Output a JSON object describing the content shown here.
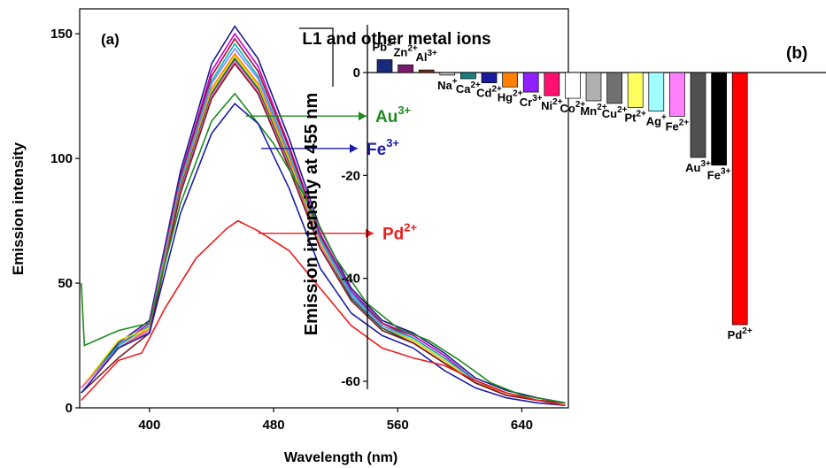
{
  "chart_data": [
    {
      "panel_label": "(a)",
      "type": "line",
      "xlabel": "Wavelength (nm)",
      "ylabel": "Emission intensity",
      "xlim": [
        355,
        670
      ],
      "ylim": [
        0,
        160
      ],
      "xticks": [
        400,
        480,
        560,
        640
      ],
      "yticks": [
        0,
        50,
        100,
        150
      ],
      "grid": false,
      "series": [
        {
          "color": "#1a1a8c",
          "values": [
            [
              356,
              8
            ],
            [
              380,
              26
            ],
            [
              400,
              35
            ],
            [
              420,
              95
            ],
            [
              440,
              138
            ],
            [
              455,
              153
            ],
            [
              470,
              140
            ],
            [
              490,
              108
            ],
            [
              510,
              72
            ],
            [
              530,
              48
            ],
            [
              550,
              35
            ],
            [
              570,
              30
            ],
            [
              590,
              22
            ],
            [
              610,
              12
            ],
            [
              630,
              7
            ],
            [
              650,
              4
            ],
            [
              668,
              2
            ]
          ]
        },
        {
          "color": "#cc00cc",
          "values": [
            [
              356,
              8
            ],
            [
              380,
              25
            ],
            [
              400,
              34
            ],
            [
              420,
              93
            ],
            [
              440,
              135
            ],
            [
              455,
              150
            ],
            [
              470,
              137
            ],
            [
              490,
              105
            ],
            [
              510,
              70
            ],
            [
              530,
              47
            ],
            [
              550,
              34
            ],
            [
              570,
              29
            ],
            [
              590,
              21
            ],
            [
              610,
              11
            ],
            [
              630,
              6
            ],
            [
              650,
              3
            ],
            [
              668,
              2
            ]
          ]
        },
        {
          "color": "#a01030",
          "values": [
            [
              356,
              8
            ],
            [
              380,
              25
            ],
            [
              400,
              33
            ],
            [
              420,
              92
            ],
            [
              440,
              133
            ],
            [
              455,
              148
            ],
            [
              470,
              135
            ],
            [
              490,
              104
            ],
            [
              510,
              69
            ],
            [
              530,
              46
            ],
            [
              550,
              34
            ],
            [
              570,
              28
            ],
            [
              590,
              20
            ],
            [
              610,
              11
            ],
            [
              630,
              6
            ],
            [
              650,
              3
            ],
            [
              668,
              2
            ]
          ]
        },
        {
          "color": "#00b8b8",
          "values": [
            [
              356,
              8
            ],
            [
              380,
              25
            ],
            [
              400,
              33
            ],
            [
              420,
              91
            ],
            [
              440,
              131
            ],
            [
              455,
              146
            ],
            [
              470,
              133
            ],
            [
              490,
              102
            ],
            [
              510,
              68
            ],
            [
              530,
              46
            ],
            [
              550,
              33
            ],
            [
              570,
              28
            ],
            [
              590,
              20
            ],
            [
              610,
              11
            ],
            [
              630,
              6
            ],
            [
              650,
              3
            ],
            [
              668,
              2
            ]
          ]
        },
        {
          "color": "#8080ff",
          "values": [
            [
              356,
              8
            ],
            [
              380,
              24
            ],
            [
              400,
              32
            ],
            [
              420,
              90
            ],
            [
              440,
              130
            ],
            [
              455,
              144
            ],
            [
              470,
              132
            ],
            [
              490,
              101
            ],
            [
              510,
              67
            ],
            [
              530,
              45
            ],
            [
              550,
              33
            ],
            [
              570,
              27
            ],
            [
              590,
              19
            ],
            [
              610,
              10
            ],
            [
              630,
              6
            ],
            [
              650,
              3
            ],
            [
              668,
              2
            ]
          ]
        },
        {
          "color": "#ff8000",
          "values": [
            [
              356,
              8
            ],
            [
              380,
              24
            ],
            [
              400,
              32
            ],
            [
              420,
              89
            ],
            [
              440,
              128
            ],
            [
              455,
              142
            ],
            [
              470,
              130
            ],
            [
              490,
              100
            ],
            [
              510,
              66
            ],
            [
              530,
              44
            ],
            [
              550,
              32
            ],
            [
              570,
              27
            ],
            [
              590,
              19
            ],
            [
              610,
              10
            ],
            [
              630,
              6
            ],
            [
              650,
              3
            ],
            [
              668,
              2
            ]
          ]
        },
        {
          "color": "#e0e000",
          "values": [
            [
              356,
              8
            ],
            [
              380,
              27
            ],
            [
              400,
              32
            ],
            [
              420,
              88
            ],
            [
              440,
              127
            ],
            [
              455,
              141
            ],
            [
              470,
              129
            ],
            [
              490,
              99
            ],
            [
              510,
              66
            ],
            [
              530,
              44
            ],
            [
              550,
              32
            ],
            [
              570,
              27
            ],
            [
              590,
              19
            ],
            [
              610,
              10
            ],
            [
              630,
              5
            ],
            [
              650,
              3
            ],
            [
              668,
              2
            ]
          ]
        },
        {
          "color": "#006060",
          "values": [
            [
              356,
              8
            ],
            [
              380,
              24
            ],
            [
              400,
              31
            ],
            [
              420,
              88
            ],
            [
              440,
              126
            ],
            [
              455,
              140
            ],
            [
              470,
              128
            ],
            [
              490,
              98
            ],
            [
              510,
              65
            ],
            [
              530,
              44
            ],
            [
              550,
              32
            ],
            [
              570,
              26
            ],
            [
              590,
              18
            ],
            [
              610,
              10
            ],
            [
              630,
              5
            ],
            [
              650,
              3
            ],
            [
              668,
              2
            ]
          ]
        },
        {
          "color": "#ff66cc",
          "values": [
            [
              356,
              8
            ],
            [
              380,
              24
            ],
            [
              400,
              31
            ],
            [
              420,
              87
            ],
            [
              440,
              125
            ],
            [
              455,
              139
            ],
            [
              470,
              127
            ],
            [
              490,
              97
            ],
            [
              510,
              65
            ],
            [
              530,
              43
            ],
            [
              550,
              31
            ],
            [
              570,
              26
            ],
            [
              590,
              18
            ],
            [
              610,
              10
            ],
            [
              630,
              5
            ],
            [
              650,
              3
            ],
            [
              668,
              2
            ]
          ]
        },
        {
          "color": "#7a1a1a",
          "values": [
            [
              356,
              6
            ],
            [
              380,
              20
            ],
            [
              400,
              30
            ],
            [
              420,
              86
            ],
            [
              440,
              124
            ],
            [
              455,
              138
            ],
            [
              470,
              126
            ],
            [
              490,
              96
            ],
            [
              510,
              64
            ],
            [
              530,
              43
            ],
            [
              550,
              31
            ],
            [
              570,
              26
            ],
            [
              590,
              18
            ],
            [
              610,
              10
            ],
            [
              630,
              5
            ],
            [
              650,
              3
            ],
            [
              668,
              2
            ]
          ]
        },
        {
          "color": "#1f8a1f",
          "name_ref": "Au3+",
          "values": [
            [
              356,
              50
            ],
            [
              358,
              25
            ],
            [
              380,
              31
            ],
            [
              400,
              34
            ],
            [
              420,
              82
            ],
            [
              440,
              115
            ],
            [
              455,
              126
            ],
            [
              465,
              118
            ],
            [
              480,
              106
            ],
            [
              500,
              85
            ],
            [
              520,
              60
            ],
            [
              540,
              42
            ],
            [
              560,
              32
            ],
            [
              580,
              27
            ],
            [
              600,
              19
            ],
            [
              620,
              10
            ],
            [
              640,
              5
            ],
            [
              668,
              2
            ]
          ]
        },
        {
          "color": "#1c1ca8",
          "name_ref": "Fe3+",
          "values": [
            [
              356,
              6
            ],
            [
              380,
              24
            ],
            [
              400,
              30
            ],
            [
              420,
              78
            ],
            [
              440,
              110
            ],
            [
              455,
              122
            ],
            [
              470,
              114
            ],
            [
              490,
              88
            ],
            [
              510,
              56
            ],
            [
              530,
              38
            ],
            [
              550,
              29
            ],
            [
              570,
              24
            ],
            [
              590,
              15
            ],
            [
              610,
              8
            ],
            [
              630,
              4
            ],
            [
              650,
              2
            ],
            [
              668,
              1
            ]
          ]
        },
        {
          "color": "#ee1c1c",
          "name_ref": "Pd2+",
          "values": [
            [
              356,
              3
            ],
            [
              380,
              19
            ],
            [
              395,
              22
            ],
            [
              410,
              40
            ],
            [
              430,
              60
            ],
            [
              450,
              72
            ],
            [
              457,
              75
            ],
            [
              470,
              71
            ],
            [
              490,
              63
            ],
            [
              510,
              48
            ],
            [
              530,
              33
            ],
            [
              550,
              24
            ],
            [
              570,
              20
            ],
            [
              590,
              17
            ],
            [
              610,
              11
            ],
            [
              630,
              6
            ],
            [
              650,
              3
            ],
            [
              668,
              1
            ]
          ]
        }
      ],
      "annotations": [
        {
          "text": "Au",
          "sup": "3+",
          "color": "#1f8a1f",
          "at_x": 462,
          "at_y": 117
        },
        {
          "text": "Fe",
          "sup": "3+",
          "color": "#1c1ca8",
          "at_x": 472,
          "at_y": 104
        },
        {
          "text": "Pd",
          "sup": "2+",
          "color": "#ee1c1c",
          "at_x": 470,
          "at_y": 70
        }
      ]
    },
    {
      "panel_label": "(b)",
      "type": "bar",
      "ylabel": "Emission intensity at 455 nm",
      "ylim": [
        -62,
        3
      ],
      "yticks": [
        0,
        -20,
        -40,
        -60
      ],
      "title": "L1 and other metal ions",
      "grid": false,
      "categories": [
        "Pb",
        "Zn",
        "Al",
        "Na",
        "Ca",
        "Cd",
        "Hg",
        "Cr",
        "Ni",
        "Co",
        "Mn",
        "Cu",
        "Pt",
        "Ag",
        "Fe",
        "Au",
        "Fe",
        "Pd"
      ],
      "category_sups": [
        "2+",
        "2+",
        "3+",
        "+",
        "2+",
        "2+",
        "2+",
        "3+",
        "2+",
        "2+",
        "2+",
        "2+",
        "2+",
        "+",
        "2+",
        "3+",
        "3+",
        "2+"
      ],
      "values": [
        2.5,
        1.5,
        0.5,
        -0.5,
        -1.2,
        -2.0,
        -2.8,
        -3.8,
        -4.5,
        -5.0,
        -5.5,
        -6.0,
        -6.8,
        -7.5,
        -8.5,
        -16.5,
        -18.0,
        -49.0
      ],
      "colors": [
        "#1a2a7a",
        "#7a1a6a",
        "#7a2a1a",
        "#c0c0c0",
        "#1a8080",
        "#1a1aa0",
        "#ff8000",
        "#9020ff",
        "#ff1070",
        "#ffffff",
        "#b0b0b0",
        "#707070",
        "#ffff60",
        "#a0ffff",
        "#ff80ff",
        "#505050",
        "#000000",
        "#ff0000"
      ]
    }
  ]
}
